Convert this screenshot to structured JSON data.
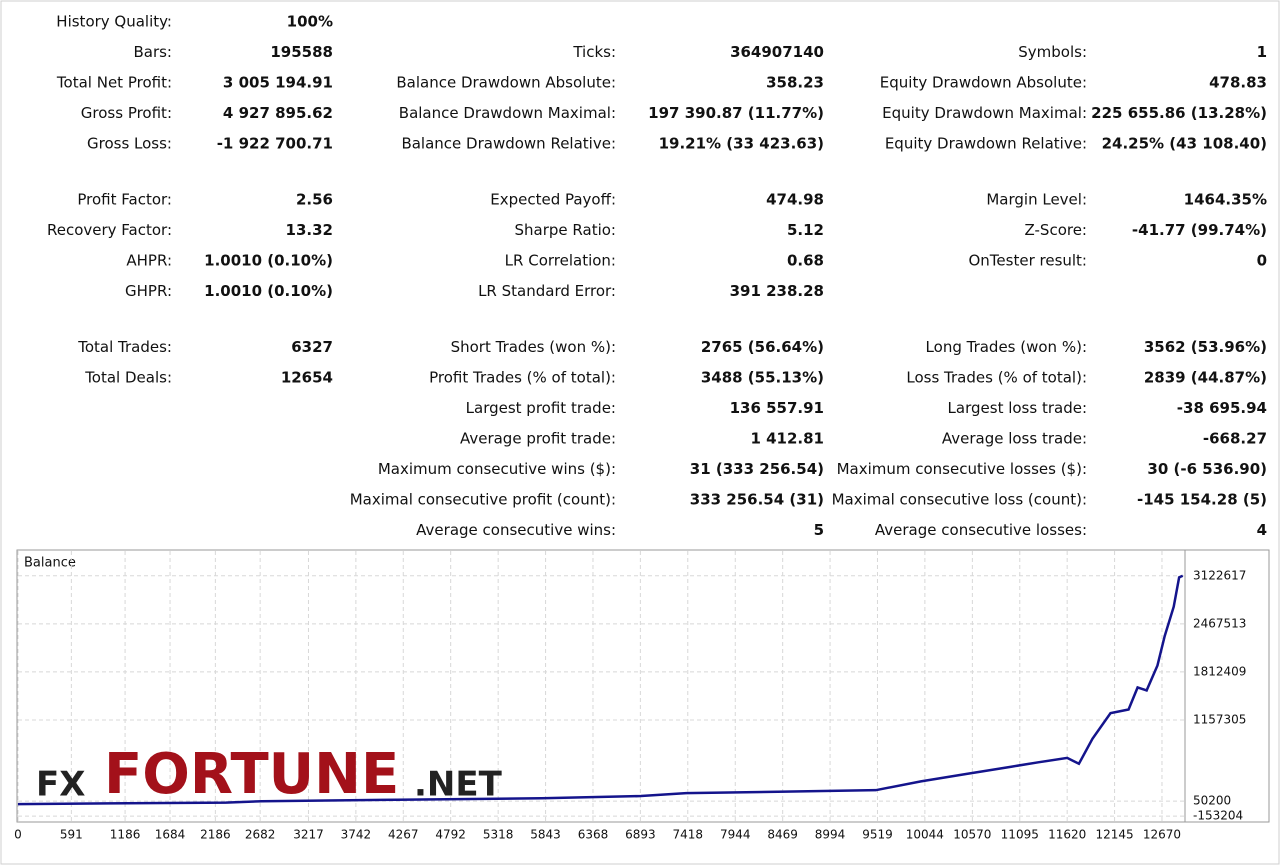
{
  "report": {
    "sections": [
      {
        "rows": [
          [
            {
              "label": "History Quality:",
              "value": "100%"
            },
            null,
            null
          ],
          [
            {
              "label": "Bars:",
              "value": "195588"
            },
            {
              "label": "Ticks:",
              "value": "364907140"
            },
            {
              "label": "Symbols:",
              "value": "1"
            }
          ],
          [
            {
              "label": "Total Net Profit:",
              "value": "3 005 194.91"
            },
            {
              "label": "Balance Drawdown Absolute:",
              "value": "358.23"
            },
            {
              "label": "Equity Drawdown Absolute:",
              "value": "478.83"
            }
          ],
          [
            {
              "label": "Gross Profit:",
              "value": "4 927 895.62"
            },
            {
              "label": "Balance Drawdown Maximal:",
              "value": "197 390.87 (11.77%)"
            },
            {
              "label": "Equity Drawdown Maximal:",
              "value": "225 655.86 (13.28%)"
            }
          ],
          [
            {
              "label": "Gross Loss:",
              "value": "-1 922 700.71"
            },
            {
              "label": "Balance Drawdown Relative:",
              "value": "19.21% (33 423.63)"
            },
            {
              "label": "Equity Drawdown Relative:",
              "value": "24.25% (43 108.40)"
            }
          ]
        ]
      },
      {
        "rows": [
          [
            {
              "label": "Profit Factor:",
              "value": "2.56"
            },
            {
              "label": "Expected Payoff:",
              "value": "474.98"
            },
            {
              "label": "Margin Level:",
              "value": "1464.35%"
            }
          ],
          [
            {
              "label": "Recovery Factor:",
              "value": "13.32"
            },
            {
              "label": "Sharpe Ratio:",
              "value": "5.12"
            },
            {
              "label": "Z-Score:",
              "value": "-41.77 (99.74%)"
            }
          ],
          [
            {
              "label": "AHPR:",
              "value": "1.0010 (0.10%)"
            },
            {
              "label": "LR Correlation:",
              "value": "0.68"
            },
            {
              "label": "OnTester result:",
              "value": "0"
            }
          ],
          [
            {
              "label": "GHPR:",
              "value": "1.0010 (0.10%)"
            },
            {
              "label": "LR Standard Error:",
              "value": "391 238.28"
            },
            null
          ]
        ]
      },
      {
        "rows": [
          [
            {
              "label": "Total Trades:",
              "value": "6327"
            },
            {
              "label": "Short Trades (won %):",
              "value": "2765 (56.64%)"
            },
            {
              "label": "Long Trades (won %):",
              "value": "3562 (53.96%)"
            }
          ],
          [
            {
              "label": "Total Deals:",
              "value": "12654"
            },
            {
              "label": "Profit Trades (% of total):",
              "value": "3488 (55.13%)"
            },
            {
              "label": "Loss Trades (% of total):",
              "value": "2839 (44.87%)"
            }
          ],
          [
            null,
            {
              "label": "Largest profit trade:",
              "value": "136 557.91"
            },
            {
              "label": "Largest loss trade:",
              "value": "-38 695.94"
            }
          ],
          [
            null,
            {
              "label": "Average profit trade:",
              "value": "1 412.81"
            },
            {
              "label": "Average loss trade:",
              "value": "-668.27"
            }
          ],
          [
            null,
            {
              "label": "Maximum consecutive wins ($):",
              "value": "31 (333 256.54)"
            },
            {
              "label": "Maximum consecutive losses ($):",
              "value": "30 (-6 536.90)"
            }
          ],
          [
            null,
            {
              "label": "Maximal consecutive profit (count):",
              "value": "333 256.54 (31)"
            },
            {
              "label": "Maximal consecutive loss (count):",
              "value": "-145 154.28 (5)"
            }
          ],
          [
            null,
            {
              "label": "Average consecutive wins:",
              "value": "5"
            },
            {
              "label": "Average consecutive losses:",
              "value": "4"
            }
          ]
        ]
      }
    ]
  },
  "chart_data": {
    "type": "line",
    "title": "Balance",
    "x": [
      0,
      1000,
      2300,
      2700,
      4200,
      5800,
      6900,
      7400,
      8500,
      9500,
      10000,
      10500,
      11000,
      11300,
      11620,
      11750,
      11900,
      12100,
      12300,
      12400,
      12500,
      12620,
      12700,
      12800,
      12860,
      12900
    ],
    "series": [
      {
        "name": "Balance",
        "color": "#14148c",
        "values": [
          10000,
          20000,
          30000,
          50000,
          70000,
          90000,
          120000,
          160000,
          180000,
          200000,
          320000,
          420000,
          520000,
          580000,
          640000,
          560000,
          900000,
          1250000,
          1300000,
          1600000,
          1560000,
          1900000,
          2300000,
          2700000,
          3100000,
          3122617
        ]
      }
    ],
    "xlim": [
      0,
      12925
    ],
    "ylim": [
      -220000,
      3460000
    ],
    "xticks": [
      0,
      591,
      1186,
      1684,
      2186,
      2682,
      3217,
      3742,
      4267,
      4792,
      5318,
      5843,
      6368,
      6893,
      7418,
      7944,
      8469,
      8994,
      9519,
      10044,
      10570,
      11095,
      11620,
      12145,
      12670
    ],
    "yticks": [
      3122617,
      2467513,
      1812409,
      1157305,
      50200,
      -153204
    ],
    "grid": true
  },
  "watermark": {
    "prefix": "FX",
    "name": "FORTUNE",
    "suffix": ".NET"
  }
}
